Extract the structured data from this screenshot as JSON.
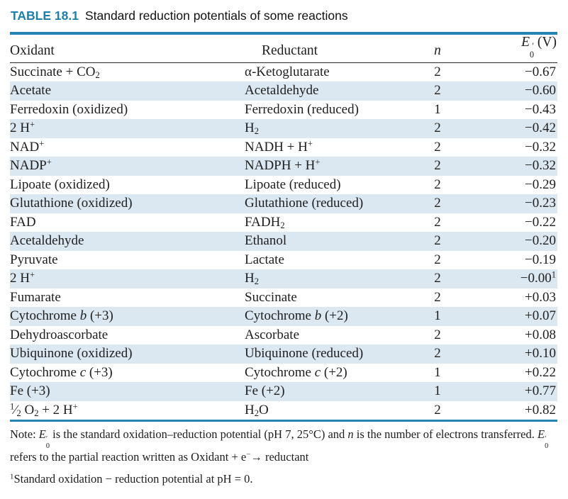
{
  "title": {
    "label": "TABLE 18.1",
    "caption": "Standard reduction potentials of some reactions"
  },
  "colors": {
    "accent_blue": "#2384b2",
    "title_blue": "#1d7fae",
    "row_stripe": "#dbe8f1",
    "text": "#1e1e1e"
  },
  "table": {
    "headers": {
      "oxidant": "Oxidant",
      "reductant": "Reductant",
      "n": "<i>n</i>",
      "e0": "<i>E</i><span class='stk'><span>&#8242;</span><span>0</span></span> (V)"
    },
    "rows": [
      {
        "oxidant": "Succinate + CO<sub>2</sub>",
        "reductant": "&#945;-Ketoglutarate",
        "n": "2",
        "e0": "&#8722;0.67"
      },
      {
        "oxidant": "Acetate",
        "reductant": "Acetaldehyde",
        "n": "2",
        "e0": "&#8722;0.60"
      },
      {
        "oxidant": "Ferredoxin (oxidized)",
        "reductant": "Ferredoxin (reduced)",
        "n": "1",
        "e0": "&#8722;0.43"
      },
      {
        "oxidant": "2 H<sup>+</sup>",
        "reductant": "H<sub>2</sub>",
        "n": "2",
        "e0": "&#8722;0.42"
      },
      {
        "oxidant": "NAD<sup>+</sup>",
        "reductant": "NADH + H<sup>+</sup>",
        "n": "2",
        "e0": "&#8722;0.32"
      },
      {
        "oxidant": "NADP<sup>+</sup>",
        "reductant": "NADPH + H<sup>+</sup>",
        "n": "2",
        "e0": "&#8722;0.32"
      },
      {
        "oxidant": "Lipoate (oxidized)",
        "reductant": "Lipoate (reduced)",
        "n": "2",
        "e0": "&#8722;0.29"
      },
      {
        "oxidant": "Glutathione (oxidized)",
        "reductant": "Glutathione (reduced)",
        "n": "2",
        "e0": "&#8722;0.23"
      },
      {
        "oxidant": "FAD",
        "reductant": "FADH<sub>2</sub>",
        "n": "2",
        "e0": "&#8722;0.22"
      },
      {
        "oxidant": "Acetaldehyde",
        "reductant": "Ethanol",
        "n": "2",
        "e0": "&#8722;0.20"
      },
      {
        "oxidant": "Pyruvate",
        "reductant": "Lactate",
        "n": "2",
        "e0": "&#8722;0.19"
      },
      {
        "oxidant": "2 H<sup>+</sup>",
        "reductant": "H<sub>2</sub>",
        "n": "2",
        "e0": "&#8722;0.00<sup>1</sup>"
      },
      {
        "oxidant": "Fumarate",
        "reductant": "Succinate",
        "n": "2",
        "e0": "+0.03"
      },
      {
        "oxidant": "Cytochrome <i>b</i> (+3)",
        "reductant": "Cytochrome <i>b</i> (+2)",
        "n": "1",
        "e0": "+0.07"
      },
      {
        "oxidant": "Dehydroascorbate",
        "reductant": "Ascorbate",
        "n": "2",
        "e0": "+0.08"
      },
      {
        "oxidant": "Ubiquinone (oxidized)",
        "reductant": "Ubiquinone (reduced)",
        "n": "2",
        "e0": "+0.10"
      },
      {
        "oxidant": "Cytochrome <i>c</i> (+3)",
        "reductant": "Cytochrome <i>c</i> (+2)",
        "n": "1",
        "e0": "+0.22"
      },
      {
        "oxidant": "Fe (+3)",
        "reductant": "Fe (+2)",
        "n": "1",
        "e0": "+0.77"
      },
      {
        "oxidant": "<sup>1</sup>&#8260;<sub>2</sub> O<sub>2</sub> + 2 H<sup>+</sup>",
        "reductant": "H<sub>2</sub>O",
        "n": "2",
        "e0": "+0.82"
      }
    ]
  },
  "notes": {
    "general": "Note: <i>E</i><span class='stk'><span>&#8242;</span><span>0</span></span> is the standard oxidation&#8211;reduction potential (pH 7, 25&#176;C) and <i>n</i> is the number of electrons transferred. <i>E</i><span class='stk'><span>&#8242;</span><span>0</span></span> refers to the partial reaction written as Oxidant + e<sup>&#8722;</sup>&#8594; reductant",
    "footnote": "<sup>1</sup>Standard oxidation &#8722; reduction potential at pH = 0."
  }
}
